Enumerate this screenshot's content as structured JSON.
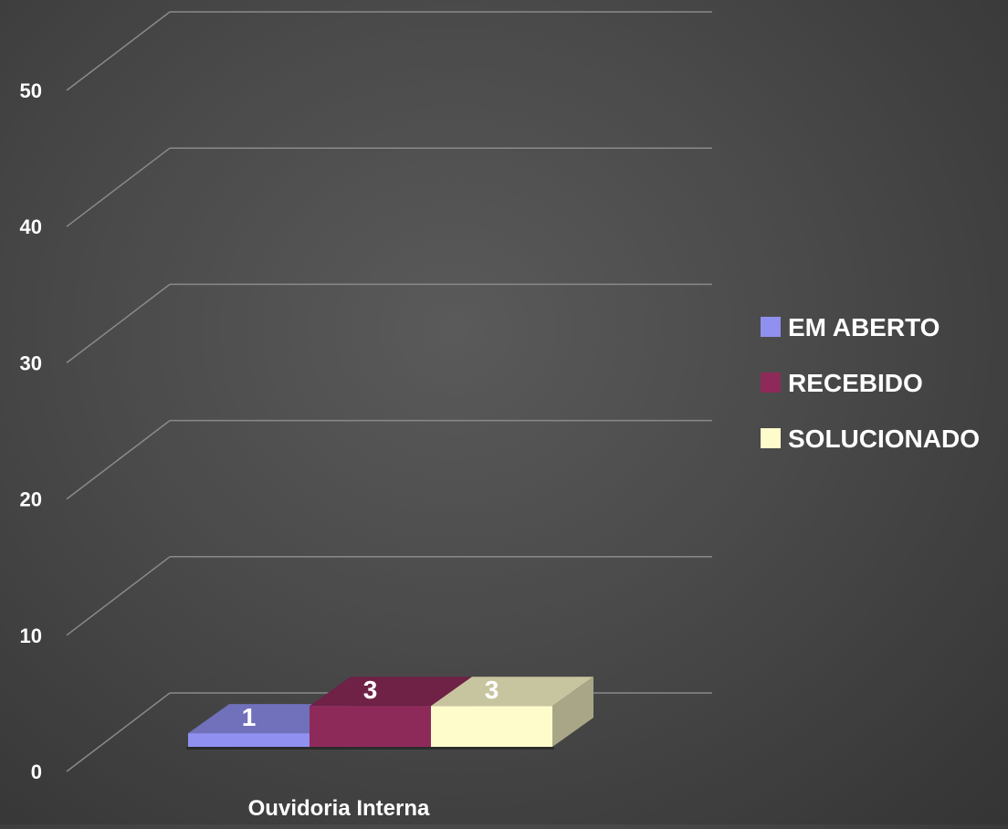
{
  "chart_data": {
    "type": "bar",
    "style": "3d-clustered",
    "categories": [
      "Ouvidoria Interna"
    ],
    "series": [
      {
        "name": "EM ABERTO",
        "values": [
          1
        ],
        "color": "#9090f0"
      },
      {
        "name": "RECEBIDO",
        "values": [
          3
        ],
        "color": "#8e2a5a"
      },
      {
        "name": "SOLUCIONADO",
        "values": [
          3
        ],
        "color": "#fffccc"
      }
    ],
    "data_labels": [
      "1",
      "3",
      "3"
    ],
    "y_ticks": [
      "0",
      "10",
      "20",
      "30",
      "40",
      "50"
    ],
    "ylim": [
      0,
      50
    ],
    "grid": true,
    "legend": {
      "position": "right",
      "items": [
        "EM ABERTO",
        "RECEBIDO",
        "SOLUCIONADO"
      ]
    },
    "title": "",
    "xlabel": "",
    "ylabel": ""
  }
}
